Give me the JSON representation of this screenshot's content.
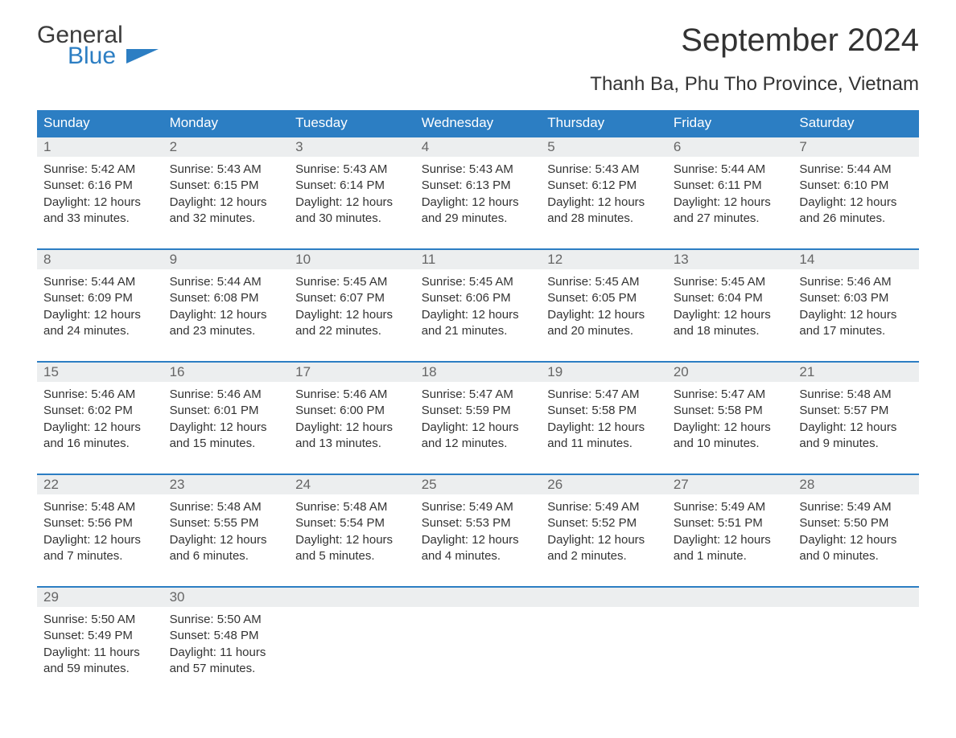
{
  "logo": {
    "line1": "General",
    "line2": "Blue"
  },
  "title": "September 2024",
  "subtitle": "Thanh Ba, Phu Tho Province, Vietnam",
  "style": {
    "header_bg": "#2c7ec3",
    "header_text": "#ffffff",
    "band_bg": "#eceeef",
    "row_border": "#2c7ec3",
    "page_bg": "#ffffff",
    "title_fontsize": 40,
    "subtitle_fontsize": 24,
    "weekday_fontsize": 17,
    "body_fontsize": 15,
    "columns": 7
  },
  "weekdays": [
    "Sunday",
    "Monday",
    "Tuesday",
    "Wednesday",
    "Thursday",
    "Friday",
    "Saturday"
  ],
  "weeks": [
    [
      {
        "n": "1",
        "sr": "Sunrise: 5:42 AM",
        "ss": "Sunset: 6:16 PM",
        "d1": "Daylight: 12 hours",
        "d2": "and 33 minutes."
      },
      {
        "n": "2",
        "sr": "Sunrise: 5:43 AM",
        "ss": "Sunset: 6:15 PM",
        "d1": "Daylight: 12 hours",
        "d2": "and 32 minutes."
      },
      {
        "n": "3",
        "sr": "Sunrise: 5:43 AM",
        "ss": "Sunset: 6:14 PM",
        "d1": "Daylight: 12 hours",
        "d2": "and 30 minutes."
      },
      {
        "n": "4",
        "sr": "Sunrise: 5:43 AM",
        "ss": "Sunset: 6:13 PM",
        "d1": "Daylight: 12 hours",
        "d2": "and 29 minutes."
      },
      {
        "n": "5",
        "sr": "Sunrise: 5:43 AM",
        "ss": "Sunset: 6:12 PM",
        "d1": "Daylight: 12 hours",
        "d2": "and 28 minutes."
      },
      {
        "n": "6",
        "sr": "Sunrise: 5:44 AM",
        "ss": "Sunset: 6:11 PM",
        "d1": "Daylight: 12 hours",
        "d2": "and 27 minutes."
      },
      {
        "n": "7",
        "sr": "Sunrise: 5:44 AM",
        "ss": "Sunset: 6:10 PM",
        "d1": "Daylight: 12 hours",
        "d2": "and 26 minutes."
      }
    ],
    [
      {
        "n": "8",
        "sr": "Sunrise: 5:44 AM",
        "ss": "Sunset: 6:09 PM",
        "d1": "Daylight: 12 hours",
        "d2": "and 24 minutes."
      },
      {
        "n": "9",
        "sr": "Sunrise: 5:44 AM",
        "ss": "Sunset: 6:08 PM",
        "d1": "Daylight: 12 hours",
        "d2": "and 23 minutes."
      },
      {
        "n": "10",
        "sr": "Sunrise: 5:45 AM",
        "ss": "Sunset: 6:07 PM",
        "d1": "Daylight: 12 hours",
        "d2": "and 22 minutes."
      },
      {
        "n": "11",
        "sr": "Sunrise: 5:45 AM",
        "ss": "Sunset: 6:06 PM",
        "d1": "Daylight: 12 hours",
        "d2": "and 21 minutes."
      },
      {
        "n": "12",
        "sr": "Sunrise: 5:45 AM",
        "ss": "Sunset: 6:05 PM",
        "d1": "Daylight: 12 hours",
        "d2": "and 20 minutes."
      },
      {
        "n": "13",
        "sr": "Sunrise: 5:45 AM",
        "ss": "Sunset: 6:04 PM",
        "d1": "Daylight: 12 hours",
        "d2": "and 18 minutes."
      },
      {
        "n": "14",
        "sr": "Sunrise: 5:46 AM",
        "ss": "Sunset: 6:03 PM",
        "d1": "Daylight: 12 hours",
        "d2": "and 17 minutes."
      }
    ],
    [
      {
        "n": "15",
        "sr": "Sunrise: 5:46 AM",
        "ss": "Sunset: 6:02 PM",
        "d1": "Daylight: 12 hours",
        "d2": "and 16 minutes."
      },
      {
        "n": "16",
        "sr": "Sunrise: 5:46 AM",
        "ss": "Sunset: 6:01 PM",
        "d1": "Daylight: 12 hours",
        "d2": "and 15 minutes."
      },
      {
        "n": "17",
        "sr": "Sunrise: 5:46 AM",
        "ss": "Sunset: 6:00 PM",
        "d1": "Daylight: 12 hours",
        "d2": "and 13 minutes."
      },
      {
        "n": "18",
        "sr": "Sunrise: 5:47 AM",
        "ss": "Sunset: 5:59 PM",
        "d1": "Daylight: 12 hours",
        "d2": "and 12 minutes."
      },
      {
        "n": "19",
        "sr": "Sunrise: 5:47 AM",
        "ss": "Sunset: 5:58 PM",
        "d1": "Daylight: 12 hours",
        "d2": "and 11 minutes."
      },
      {
        "n": "20",
        "sr": "Sunrise: 5:47 AM",
        "ss": "Sunset: 5:58 PM",
        "d1": "Daylight: 12 hours",
        "d2": "and 10 minutes."
      },
      {
        "n": "21",
        "sr": "Sunrise: 5:48 AM",
        "ss": "Sunset: 5:57 PM",
        "d1": "Daylight: 12 hours",
        "d2": "and 9 minutes."
      }
    ],
    [
      {
        "n": "22",
        "sr": "Sunrise: 5:48 AM",
        "ss": "Sunset: 5:56 PM",
        "d1": "Daylight: 12 hours",
        "d2": "and 7 minutes."
      },
      {
        "n": "23",
        "sr": "Sunrise: 5:48 AM",
        "ss": "Sunset: 5:55 PM",
        "d1": "Daylight: 12 hours",
        "d2": "and 6 minutes."
      },
      {
        "n": "24",
        "sr": "Sunrise: 5:48 AM",
        "ss": "Sunset: 5:54 PM",
        "d1": "Daylight: 12 hours",
        "d2": "and 5 minutes."
      },
      {
        "n": "25",
        "sr": "Sunrise: 5:49 AM",
        "ss": "Sunset: 5:53 PM",
        "d1": "Daylight: 12 hours",
        "d2": "and 4 minutes."
      },
      {
        "n": "26",
        "sr": "Sunrise: 5:49 AM",
        "ss": "Sunset: 5:52 PM",
        "d1": "Daylight: 12 hours",
        "d2": "and 2 minutes."
      },
      {
        "n": "27",
        "sr": "Sunrise: 5:49 AM",
        "ss": "Sunset: 5:51 PM",
        "d1": "Daylight: 12 hours",
        "d2": "and 1 minute."
      },
      {
        "n": "28",
        "sr": "Sunrise: 5:49 AM",
        "ss": "Sunset: 5:50 PM",
        "d1": "Daylight: 12 hours",
        "d2": "and 0 minutes."
      }
    ],
    [
      {
        "n": "29",
        "sr": "Sunrise: 5:50 AM",
        "ss": "Sunset: 5:49 PM",
        "d1": "Daylight: 11 hours",
        "d2": "and 59 minutes."
      },
      {
        "n": "30",
        "sr": "Sunrise: 5:50 AM",
        "ss": "Sunset: 5:48 PM",
        "d1": "Daylight: 11 hours",
        "d2": "and 57 minutes."
      },
      {
        "n": "",
        "sr": "",
        "ss": "",
        "d1": "",
        "d2": ""
      },
      {
        "n": "",
        "sr": "",
        "ss": "",
        "d1": "",
        "d2": ""
      },
      {
        "n": "",
        "sr": "",
        "ss": "",
        "d1": "",
        "d2": ""
      },
      {
        "n": "",
        "sr": "",
        "ss": "",
        "d1": "",
        "d2": ""
      },
      {
        "n": "",
        "sr": "",
        "ss": "",
        "d1": "",
        "d2": ""
      }
    ]
  ]
}
